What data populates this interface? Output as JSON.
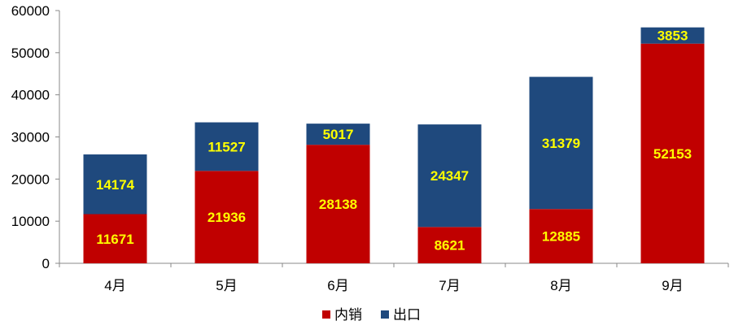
{
  "chart_data": {
    "type": "bar",
    "stacked": true,
    "categories": [
      "4月",
      "5月",
      "6月",
      "7月",
      "8月",
      "9月"
    ],
    "series": [
      {
        "name": "内销",
        "color": "#c00000",
        "values": [
          11671,
          21936,
          28138,
          8621,
          12885,
          52153
        ]
      },
      {
        "name": "出口",
        "color": "#1f497d",
        "values": [
          14174,
          11527,
          5017,
          24347,
          31379,
          3853
        ]
      }
    ],
    "yticks": [
      "0",
      "10000",
      "20000",
      "30000",
      "40000",
      "50000",
      "60000"
    ],
    "ylim": [
      0,
      60000
    ],
    "grid": false,
    "legend": "bottom",
    "label_color": "#ffff00"
  }
}
